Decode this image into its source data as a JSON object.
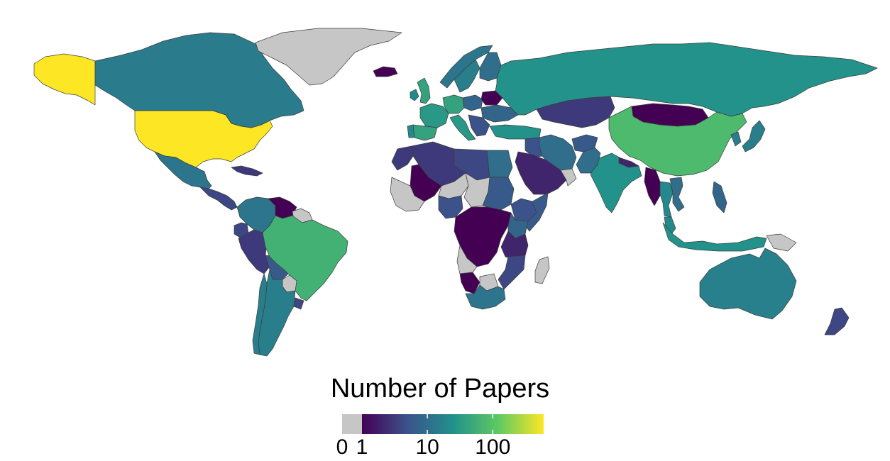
{
  "legend": {
    "title": "Number of Papers",
    "scale": "log",
    "no_data_color": "#c6c6c6",
    "zero_label": "0",
    "ticks": [
      {
        "value": 1,
        "label": "1"
      },
      {
        "value": 10,
        "label": "10"
      },
      {
        "value": 100,
        "label": "100"
      }
    ],
    "max_value": 600,
    "palette": [
      "#440154",
      "#3b528b",
      "#21918c",
      "#5ec962",
      "#fde725"
    ]
  },
  "countries": [
    {
      "name": "United States",
      "papers": 600
    },
    {
      "name": "Alaska (US)",
      "papers": 600
    },
    {
      "name": "Canada",
      "papers": 14
    },
    {
      "name": "Greenland",
      "papers": 0
    },
    {
      "name": "Mexico",
      "papers": 12
    },
    {
      "name": "Central America",
      "papers": 4
    },
    {
      "name": "Cuba",
      "papers": 3
    },
    {
      "name": "Colombia",
      "papers": 12
    },
    {
      "name": "Venezuela",
      "papers": 1
    },
    {
      "name": "Guianas",
      "papers": 0
    },
    {
      "name": "Ecuador",
      "papers": 4
    },
    {
      "name": "Peru",
      "papers": 3
    },
    {
      "name": "Bolivia",
      "papers": 6
    },
    {
      "name": "Brazil",
      "papers": 60
    },
    {
      "name": "Paraguay",
      "papers": 0
    },
    {
      "name": "Argentina",
      "papers": 15
    },
    {
      "name": "Chile",
      "papers": 15
    },
    {
      "name": "Uruguay",
      "papers": 4
    },
    {
      "name": "United Kingdom",
      "papers": 40
    },
    {
      "name": "Ireland",
      "papers": 20
    },
    {
      "name": "Iceland",
      "papers": 1
    },
    {
      "name": "Norway",
      "papers": 12
    },
    {
      "name": "Sweden",
      "papers": 15
    },
    {
      "name": "Finland",
      "papers": 10
    },
    {
      "name": "France",
      "papers": 30
    },
    {
      "name": "Spain",
      "papers": 40
    },
    {
      "name": "Portugal",
      "papers": 20
    },
    {
      "name": "Germany",
      "papers": 40
    },
    {
      "name": "Italy",
      "papers": 30
    },
    {
      "name": "Poland",
      "papers": 8
    },
    {
      "name": "Belarus",
      "papers": 1
    },
    {
      "name": "Ukraine",
      "papers": 8
    },
    {
      "name": "Balkans",
      "papers": 5
    },
    {
      "name": "Turkey",
      "papers": 25
    },
    {
      "name": "Russia",
      "papers": 25
    },
    {
      "name": "Kazakhstan",
      "papers": 3
    },
    {
      "name": "Mongolia",
      "papers": 1
    },
    {
      "name": "China",
      "papers": 80
    },
    {
      "name": "Japan",
      "papers": 15
    },
    {
      "name": "South Korea",
      "papers": 15
    },
    {
      "name": "India",
      "papers": 25
    },
    {
      "name": "Pakistan",
      "papers": 10
    },
    {
      "name": "Afghanistan",
      "papers": 6
    },
    {
      "name": "Iran",
      "papers": 10
    },
    {
      "name": "Iraq",
      "papers": 5
    },
    {
      "name": "Saudi Arabia",
      "papers": 2
    },
    {
      "name": "Gulf States",
      "papers": 0
    },
    {
      "name": "Nepal",
      "papers": 2
    },
    {
      "name": "Myanmar",
      "papers": 1
    },
    {
      "name": "Thailand",
      "papers": 20
    },
    {
      "name": "Vietnam",
      "papers": 10
    },
    {
      "name": "Malaysia",
      "papers": 20
    },
    {
      "name": "Indonesia",
      "papers": 25
    },
    {
      "name": "Philippines",
      "papers": 8
    },
    {
      "name": "Papua New Guinea",
      "papers": 0
    },
    {
      "name": "Australia",
      "papers": 16
    },
    {
      "name": "New Zealand",
      "papers": 4
    },
    {
      "name": "Morocco",
      "papers": 3
    },
    {
      "name": "Algeria",
      "papers": 3
    },
    {
      "name": "Libya",
      "papers": 4
    },
    {
      "name": "Egypt",
      "papers": 10
    },
    {
      "name": "Mali",
      "papers": 1
    },
    {
      "name": "Niger",
      "papers": 0
    },
    {
      "name": "Chad",
      "papers": 0
    },
    {
      "name": "Sudan",
      "papers": 6
    },
    {
      "name": "West Africa",
      "papers": 0
    },
    {
      "name": "Nigeria",
      "papers": 5
    },
    {
      "name": "Ethiopia",
      "papers": 5
    },
    {
      "name": "Somalia",
      "papers": 6
    },
    {
      "name": "Kenya",
      "papers": 8
    },
    {
      "name": "Central Africa",
      "papers": 1
    },
    {
      "name": "East Africa",
      "papers": 2
    },
    {
      "name": "Angola",
      "papers": 0
    },
    {
      "name": "Namibia",
      "papers": 1
    },
    {
      "name": "Botswana",
      "papers": 0
    },
    {
      "name": "South Africa",
      "papers": 12
    },
    {
      "name": "Mozambique",
      "papers": 4
    },
    {
      "name": "Madagascar",
      "papers": 0
    }
  ]
}
